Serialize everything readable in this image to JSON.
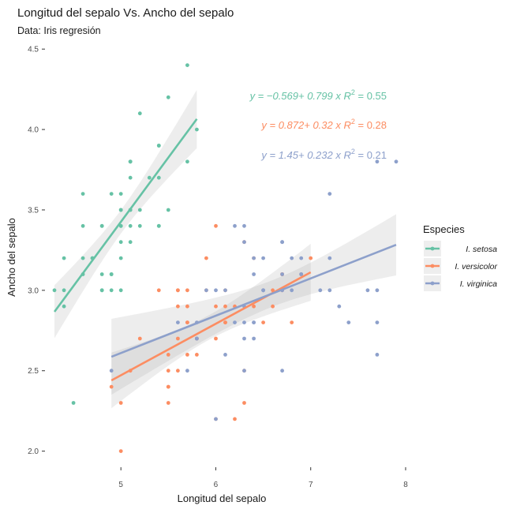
{
  "chart_data": {
    "type": "scatter",
    "title": "Longitud del sepalo Vs. Ancho del sepalo",
    "subtitle": "Data: Iris regresión",
    "xlabel": "Longitud del sepalo",
    "ylabel": "Ancho del sepalo",
    "xlim": [
      4.2,
      8.05
    ],
    "ylim": [
      1.9,
      4.55
    ],
    "x_ticks": [
      5,
      6,
      7,
      8
    ],
    "y_ticks": [
      2.0,
      2.5,
      3.0,
      3.5,
      4.0,
      4.5
    ],
    "y_tick_labels": [
      "2.0",
      "2.5",
      "3.0",
      "3.5",
      "4.0",
      "4.5"
    ],
    "grid": false,
    "legend": {
      "title": "Especies",
      "position": "right"
    },
    "series": [
      {
        "name": "I. setosa",
        "color": "#66c2a5",
        "x": [
          5.1,
          4.9,
          4.7,
          4.6,
          5.0,
          5.4,
          4.6,
          5.0,
          4.4,
          4.9,
          5.4,
          4.8,
          4.8,
          4.3,
          5.8,
          5.7,
          5.4,
          5.1,
          5.7,
          5.1,
          5.4,
          5.1,
          4.6,
          5.1,
          4.8,
          5.0,
          5.0,
          5.2,
          5.2,
          4.7,
          4.8,
          5.4,
          5.2,
          5.5,
          4.9,
          5.0,
          5.5,
          4.9,
          4.4,
          5.1,
          5.0,
          4.5,
          4.4,
          5.0,
          5.1,
          4.8,
          5.1,
          4.6,
          5.3,
          5.0
        ],
        "y": [
          3.5,
          3.0,
          3.2,
          3.1,
          3.6,
          3.9,
          3.4,
          3.4,
          2.9,
          3.1,
          3.7,
          3.4,
          3.0,
          3.0,
          4.0,
          4.4,
          3.9,
          3.5,
          3.8,
          3.8,
          3.4,
          3.7,
          3.6,
          3.3,
          3.4,
          3.0,
          3.4,
          3.5,
          3.4,
          3.2,
          3.1,
          3.4,
          4.1,
          4.2,
          3.1,
          3.2,
          3.5,
          3.6,
          3.0,
          3.4,
          3.5,
          2.3,
          3.2,
          3.5,
          3.8,
          3.0,
          3.8,
          3.2,
          3.7,
          3.3
        ],
        "regression": {
          "intercept": -0.569,
          "slope": 0.799,
          "x_range": [
            4.3,
            5.8
          ],
          "r2": 0.55
        },
        "equation": {
          "lhs": "y = −0.569+ 0.799 x",
          "r_symbol": "R",
          "r_exp": "2",
          "r_value": " = 0.55"
        }
      },
      {
        "name": "I. versicolor",
        "color": "#fc8d62",
        "x": [
          7.0,
          6.4,
          6.9,
          5.5,
          6.5,
          5.7,
          6.3,
          4.9,
          6.6,
          5.2,
          5.0,
          5.9,
          6.0,
          6.1,
          5.6,
          6.7,
          5.6,
          5.8,
          6.2,
          5.6,
          5.9,
          6.1,
          6.3,
          6.1,
          6.4,
          6.6,
          6.8,
          6.7,
          6.0,
          5.7,
          5.5,
          5.5,
          5.8,
          6.0,
          5.4,
          6.0,
          6.7,
          6.3,
          5.6,
          5.5,
          5.5,
          6.1,
          5.8,
          5.0,
          5.6,
          5.7,
          5.7,
          6.2,
          5.1,
          5.7
        ],
        "y": [
          3.2,
          3.2,
          3.1,
          2.3,
          2.8,
          2.8,
          3.3,
          2.4,
          2.9,
          2.7,
          2.0,
          3.0,
          2.2,
          2.9,
          2.9,
          3.1,
          3.0,
          2.7,
          2.2,
          2.5,
          3.2,
          2.8,
          2.5,
          2.8,
          2.9,
          3.0,
          2.8,
          3.0,
          2.9,
          2.6,
          2.4,
          2.4,
          2.7,
          2.7,
          3.0,
          3.4,
          3.1,
          2.3,
          3.0,
          2.5,
          2.6,
          3.0,
          2.6,
          2.3,
          2.7,
          3.0,
          2.9,
          2.9,
          2.5,
          2.8
        ],
        "regression": {
          "intercept": 0.872,
          "slope": 0.32,
          "x_range": [
            4.9,
            7.0
          ],
          "r2": 0.28
        },
        "equation": {
          "lhs": "y = 0.872+ 0.32 x",
          "r_symbol": "R",
          "r_exp": "2",
          "r_value": " = 0.28"
        }
      },
      {
        "name": "I. virginica",
        "color": "#8da0cb",
        "x": [
          6.3,
          5.8,
          7.1,
          6.3,
          6.5,
          7.6,
          4.9,
          7.3,
          6.7,
          7.2,
          6.5,
          6.4,
          6.8,
          5.7,
          5.8,
          6.4,
          6.5,
          7.7,
          7.7,
          6.0,
          6.9,
          5.6,
          7.7,
          6.3,
          6.7,
          7.2,
          6.2,
          6.1,
          6.4,
          7.2,
          7.4,
          7.9,
          6.4,
          6.3,
          6.1,
          7.7,
          6.3,
          6.4,
          6.0,
          6.9,
          6.7,
          6.9,
          5.8,
          6.8,
          6.7,
          6.7,
          6.3,
          6.5,
          6.2,
          5.9
        ],
        "y": [
          3.3,
          2.7,
          3.0,
          2.9,
          3.0,
          3.0,
          2.5,
          2.9,
          2.5,
          3.6,
          3.2,
          2.7,
          3.0,
          2.5,
          2.8,
          3.2,
          3.0,
          3.8,
          2.6,
          2.2,
          3.2,
          2.8,
          2.8,
          2.7,
          3.3,
          3.2,
          2.8,
          3.0,
          2.8,
          3.0,
          2.8,
          3.8,
          2.8,
          2.8,
          2.6,
          3.0,
          3.4,
          3.1,
          3.0,
          3.1,
          3.1,
          3.1,
          2.7,
          3.2,
          3.3,
          3.0,
          2.5,
          3.0,
          3.4,
          3.0
        ],
        "regression": {
          "intercept": 1.45,
          "slope": 0.232,
          "x_range": [
            4.9,
            7.9
          ],
          "r2": 0.21
        },
        "equation": {
          "lhs": "y = 1.45+ 0.232 x",
          "r_symbol": "R",
          "r_exp": "2",
          "r_value": " = 0.21"
        }
      }
    ]
  }
}
